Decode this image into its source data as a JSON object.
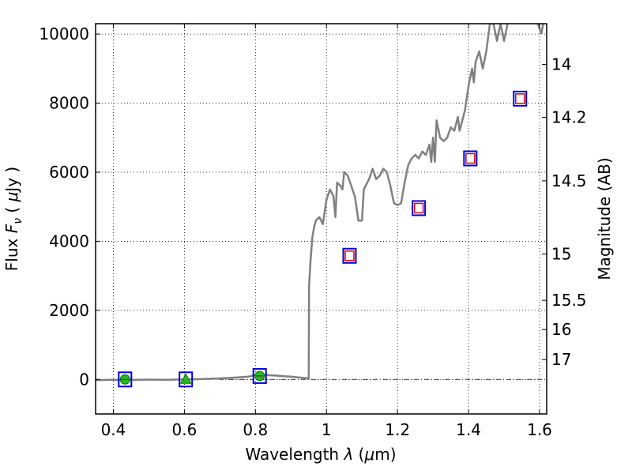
{
  "chart_data": {
    "type": "scatter",
    "title": "",
    "xlabel": "Wavelength  λ (μm)",
    "ylabel": "Flux  F_ν  ( μJy )",
    "ylabel_parts": [
      "Flux  ",
      "F",
      "ν",
      "  ( ",
      "μ",
      "Jy )"
    ],
    "xlabel_parts": [
      "Wavelength  ",
      "λ",
      " (",
      "μ",
      "m)"
    ],
    "y2label": "Magnitude (AB)",
    "xlim": [
      0.35,
      1.62
    ],
    "ylim": [
      -1000,
      10300
    ],
    "grid": true,
    "x_ticks": [
      0.4,
      0.6,
      0.8,
      1.0,
      1.2,
      1.4,
      1.6
    ],
    "x_tick_labels": [
      "0.4",
      "0.6",
      "0.8",
      "1",
      "1.2",
      "1.4",
      "1.6"
    ],
    "y_ticks": [
      0,
      2000,
      4000,
      6000,
      8000,
      10000
    ],
    "y_tick_labels": [
      "0",
      "2000",
      "4000",
      "6000",
      "8000",
      "10000"
    ],
    "y2_ticks": [
      {
        "label": "14",
        "flux": 9120
      },
      {
        "label": "14.2",
        "flux": 7590
      },
      {
        "label": "14.5",
        "flux": 5750
      },
      {
        "label": "15",
        "flux": 3630
      },
      {
        "label": "15.5",
        "flux": 2290
      },
      {
        "label": "16",
        "flux": 1445
      },
      {
        "label": "17",
        "flux": 575
      }
    ],
    "reference_line": 0,
    "colors": {
      "model": "#808080",
      "box": "#0000dd",
      "red_square": "#dd0000",
      "green": "#22bb22"
    },
    "series": [
      {
        "kind": "model-spectrum",
        "points": [
          [
            0.35,
            -20
          ],
          [
            0.4,
            -10
          ],
          [
            0.45,
            -15
          ],
          [
            0.5,
            -5
          ],
          [
            0.55,
            -10
          ],
          [
            0.6,
            0
          ],
          [
            0.65,
            10
          ],
          [
            0.7,
            30
          ],
          [
            0.75,
            60
          ],
          [
            0.78,
            80
          ],
          [
            0.8,
            130
          ],
          [
            0.82,
            140
          ],
          [
            0.84,
            120
          ],
          [
            0.86,
            110
          ],
          [
            0.88,
            90
          ],
          [
            0.9,
            80
          ],
          [
            0.92,
            60
          ],
          [
            0.94,
            40
          ],
          [
            0.95,
            30
          ],
          [
            0.951,
            2700
          ],
          [
            0.955,
            3400
          ],
          [
            0.96,
            4100
          ],
          [
            0.965,
            4400
          ],
          [
            0.97,
            4600
          ],
          [
            0.98,
            4700
          ],
          [
            0.99,
            4500
          ],
          [
            1.0,
            5200
          ],
          [
            1.01,
            5500
          ],
          [
            1.02,
            5300
          ],
          [
            1.025,
            4700
          ],
          [
            1.03,
            5700
          ],
          [
            1.04,
            5600
          ],
          [
            1.045,
            5500
          ],
          [
            1.05,
            6000
          ],
          [
            1.06,
            5900
          ],
          [
            1.07,
            5600
          ],
          [
            1.08,
            5300
          ],
          [
            1.09,
            4600
          ],
          [
            1.1,
            4600
          ],
          [
            1.105,
            5500
          ],
          [
            1.11,
            5600
          ],
          [
            1.12,
            5800
          ],
          [
            1.13,
            6100
          ],
          [
            1.14,
            5800
          ],
          [
            1.15,
            5900
          ],
          [
            1.16,
            6100
          ],
          [
            1.17,
            6000
          ],
          [
            1.18,
            5600
          ],
          [
            1.19,
            5100
          ],
          [
            1.2,
            5050
          ],
          [
            1.21,
            5100
          ],
          [
            1.22,
            5700
          ],
          [
            1.23,
            6200
          ],
          [
            1.24,
            6400
          ],
          [
            1.25,
            6500
          ],
          [
            1.26,
            6400
          ],
          [
            1.27,
            6600
          ],
          [
            1.28,
            6500
          ],
          [
            1.29,
            6800
          ],
          [
            1.295,
            6300
          ],
          [
            1.3,
            7000
          ],
          [
            1.305,
            6300
          ],
          [
            1.31,
            7500
          ],
          [
            1.32,
            7000
          ],
          [
            1.33,
            6900
          ],
          [
            1.34,
            7000
          ],
          [
            1.35,
            7300
          ],
          [
            1.36,
            7200
          ],
          [
            1.37,
            7600
          ],
          [
            1.375,
            7200
          ],
          [
            1.38,
            7400
          ],
          [
            1.39,
            7800
          ],
          [
            1.4,
            8500
          ],
          [
            1.41,
            9000
          ],
          [
            1.415,
            8600
          ],
          [
            1.42,
            9200
          ],
          [
            1.43,
            9500
          ],
          [
            1.44,
            9000
          ],
          [
            1.45,
            9500
          ],
          [
            1.46,
            10300
          ],
          [
            1.47,
            10300
          ],
          [
            1.48,
            9800
          ],
          [
            1.49,
            10300
          ],
          [
            1.5,
            9800
          ],
          [
            1.51,
            10300
          ],
          [
            1.52,
            10400
          ]
        ],
        "points_right": [
          [
            1.595,
            10300
          ],
          [
            1.605,
            10000
          ],
          [
            1.61,
            10300
          ]
        ]
      },
      {
        "kind": "observed-blue-box",
        "points": [
          [
            0.433,
            0
          ],
          [
            0.604,
            0
          ],
          [
            0.812,
            100
          ],
          [
            1.065,
            3580
          ],
          [
            1.26,
            4960
          ],
          [
            1.405,
            6400
          ],
          [
            1.545,
            8130
          ]
        ]
      },
      {
        "kind": "observed-red-square",
        "points": [
          [
            1.065,
            3580
          ],
          [
            1.26,
            4960
          ],
          [
            1.405,
            6400
          ],
          [
            1.545,
            8130
          ]
        ]
      },
      {
        "kind": "green-circle",
        "points": [
          [
            0.433,
            0
          ],
          [
            0.812,
            100
          ]
        ]
      },
      {
        "kind": "green-triangle",
        "points": [
          [
            0.604,
            0
          ]
        ]
      }
    ]
  }
}
